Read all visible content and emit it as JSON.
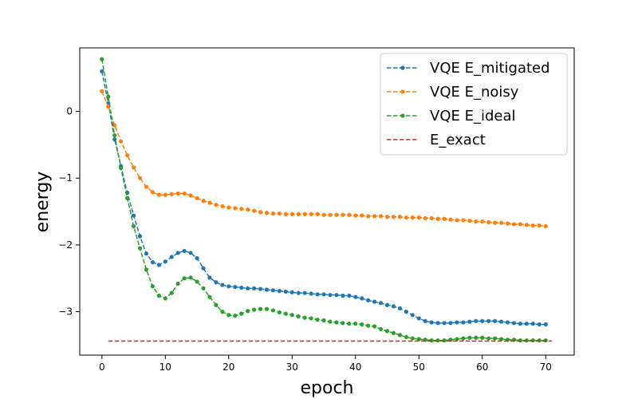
{
  "chart_data": {
    "type": "line",
    "title": "",
    "xlabel": "epoch",
    "ylabel": "energy",
    "xlim": [
      -3.5,
      74.5
    ],
    "ylim": [
      -3.65,
      0.95
    ],
    "xticks": [
      0,
      10,
      20,
      30,
      40,
      50,
      60,
      70
    ],
    "yticks": [
      0,
      -1,
      -2,
      -3
    ],
    "xtick_labels": [
      "0",
      "10",
      "20",
      "30",
      "40",
      "50",
      "60",
      "70"
    ],
    "ytick_labels": [
      "0",
      "−1",
      "−2",
      "−3"
    ],
    "grid": false,
    "legend_position": "top-right",
    "series": [
      {
        "name": "VQE E_mitigated",
        "color": "#1f77b4",
        "style": "dashed-marker",
        "x": [
          0,
          1,
          2,
          3,
          4,
          5,
          6,
          7,
          8,
          9,
          10,
          11,
          12,
          13,
          14,
          15,
          16,
          17,
          18,
          19,
          20,
          21,
          22,
          23,
          24,
          25,
          26,
          27,
          28,
          29,
          30,
          31,
          32,
          33,
          34,
          35,
          36,
          37,
          38,
          39,
          40,
          41,
          42,
          43,
          44,
          45,
          46,
          47,
          48,
          49,
          50,
          51,
          52,
          53,
          54,
          55,
          56,
          57,
          58,
          59,
          60,
          61,
          62,
          63,
          64,
          65,
          66,
          67,
          68,
          69,
          70
        ],
        "y": [
          0.6,
          0.12,
          -0.42,
          -0.82,
          -1.22,
          -1.56,
          -1.87,
          -2.13,
          -2.26,
          -2.3,
          -2.25,
          -2.18,
          -2.12,
          -2.09,
          -2.12,
          -2.2,
          -2.35,
          -2.49,
          -2.56,
          -2.6,
          -2.62,
          -2.63,
          -2.64,
          -2.65,
          -2.65,
          -2.66,
          -2.67,
          -2.68,
          -2.69,
          -2.7,
          -2.71,
          -2.72,
          -2.72,
          -2.73,
          -2.74,
          -2.74,
          -2.75,
          -2.75,
          -2.76,
          -2.76,
          -2.78,
          -2.8,
          -2.83,
          -2.85,
          -2.87,
          -2.9,
          -2.92,
          -2.95,
          -3.0,
          -3.05,
          -3.1,
          -3.14,
          -3.16,
          -3.17,
          -3.17,
          -3.17,
          -3.16,
          -3.16,
          -3.15,
          -3.14,
          -3.14,
          -3.14,
          -3.14,
          -3.15,
          -3.16,
          -3.17,
          -3.18,
          -3.18,
          -3.18,
          -3.19,
          -3.19
        ]
      },
      {
        "name": "VQE E_noisy",
        "color": "#ff7f0e",
        "style": "dashed-marker",
        "x": [
          0,
          1,
          2,
          3,
          4,
          5,
          6,
          7,
          8,
          9,
          10,
          11,
          12,
          13,
          14,
          15,
          16,
          17,
          18,
          19,
          20,
          21,
          22,
          23,
          24,
          25,
          26,
          27,
          28,
          29,
          30,
          31,
          32,
          33,
          34,
          35,
          36,
          37,
          38,
          39,
          40,
          41,
          42,
          43,
          44,
          45,
          46,
          47,
          48,
          49,
          50,
          51,
          52,
          53,
          54,
          55,
          56,
          57,
          58,
          59,
          60,
          61,
          62,
          63,
          64,
          65,
          66,
          67,
          68,
          69,
          70
        ],
        "y": [
          0.3,
          0.07,
          -0.21,
          -0.45,
          -0.66,
          -0.84,
          -1.0,
          -1.13,
          -1.21,
          -1.25,
          -1.25,
          -1.24,
          -1.23,
          -1.23,
          -1.26,
          -1.3,
          -1.34,
          -1.37,
          -1.4,
          -1.42,
          -1.44,
          -1.45,
          -1.46,
          -1.47,
          -1.49,
          -1.51,
          -1.52,
          -1.53,
          -1.53,
          -1.54,
          -1.54,
          -1.54,
          -1.54,
          -1.54,
          -1.54,
          -1.55,
          -1.55,
          -1.55,
          -1.55,
          -1.55,
          -1.56,
          -1.56,
          -1.57,
          -1.57,
          -1.57,
          -1.58,
          -1.58,
          -1.58,
          -1.59,
          -1.59,
          -1.59,
          -1.6,
          -1.6,
          -1.61,
          -1.61,
          -1.62,
          -1.63,
          -1.63,
          -1.64,
          -1.65,
          -1.65,
          -1.66,
          -1.67,
          -1.67,
          -1.68,
          -1.69,
          -1.69,
          -1.7,
          -1.71,
          -1.71,
          -1.72
        ]
      },
      {
        "name": "VQE E_ideal",
        "color": "#2ca02c",
        "style": "dashed-marker",
        "x": [
          0,
          1,
          2,
          3,
          4,
          5,
          6,
          7,
          8,
          9,
          10,
          11,
          12,
          13,
          14,
          15,
          16,
          17,
          18,
          19,
          20,
          21,
          22,
          23,
          24,
          25,
          26,
          27,
          28,
          29,
          30,
          31,
          32,
          33,
          34,
          35,
          36,
          37,
          38,
          39,
          40,
          41,
          42,
          43,
          44,
          45,
          46,
          47,
          48,
          49,
          50,
          51,
          52,
          53,
          54,
          55,
          56,
          57,
          58,
          59,
          60,
          61,
          62,
          63,
          64,
          65,
          66,
          67,
          68,
          69,
          70
        ],
        "y": [
          0.78,
          0.22,
          -0.36,
          -0.85,
          -1.3,
          -1.72,
          -2.05,
          -2.37,
          -2.62,
          -2.76,
          -2.8,
          -2.72,
          -2.58,
          -2.5,
          -2.49,
          -2.55,
          -2.65,
          -2.78,
          -2.9,
          -3.0,
          -3.05,
          -3.06,
          -3.03,
          -2.99,
          -2.97,
          -2.96,
          -2.96,
          -2.98,
          -3.01,
          -3.03,
          -3.05,
          -3.07,
          -3.09,
          -3.1,
          -3.12,
          -3.13,
          -3.15,
          -3.16,
          -3.17,
          -3.18,
          -3.18,
          -3.19,
          -3.21,
          -3.22,
          -3.26,
          -3.29,
          -3.32,
          -3.35,
          -3.38,
          -3.4,
          -3.41,
          -3.42,
          -3.43,
          -3.43,
          -3.43,
          -3.42,
          -3.41,
          -3.4,
          -3.39,
          -3.39,
          -3.39,
          -3.4,
          -3.4,
          -3.41,
          -3.42,
          -3.42,
          -3.43,
          -3.43,
          -3.43,
          -3.43,
          -3.43
        ]
      },
      {
        "name": "E_exact",
        "color": "#d62728",
        "style": "dashed",
        "x": [
          1,
          71
        ],
        "y": [
          -3.44,
          -3.44
        ]
      }
    ]
  }
}
